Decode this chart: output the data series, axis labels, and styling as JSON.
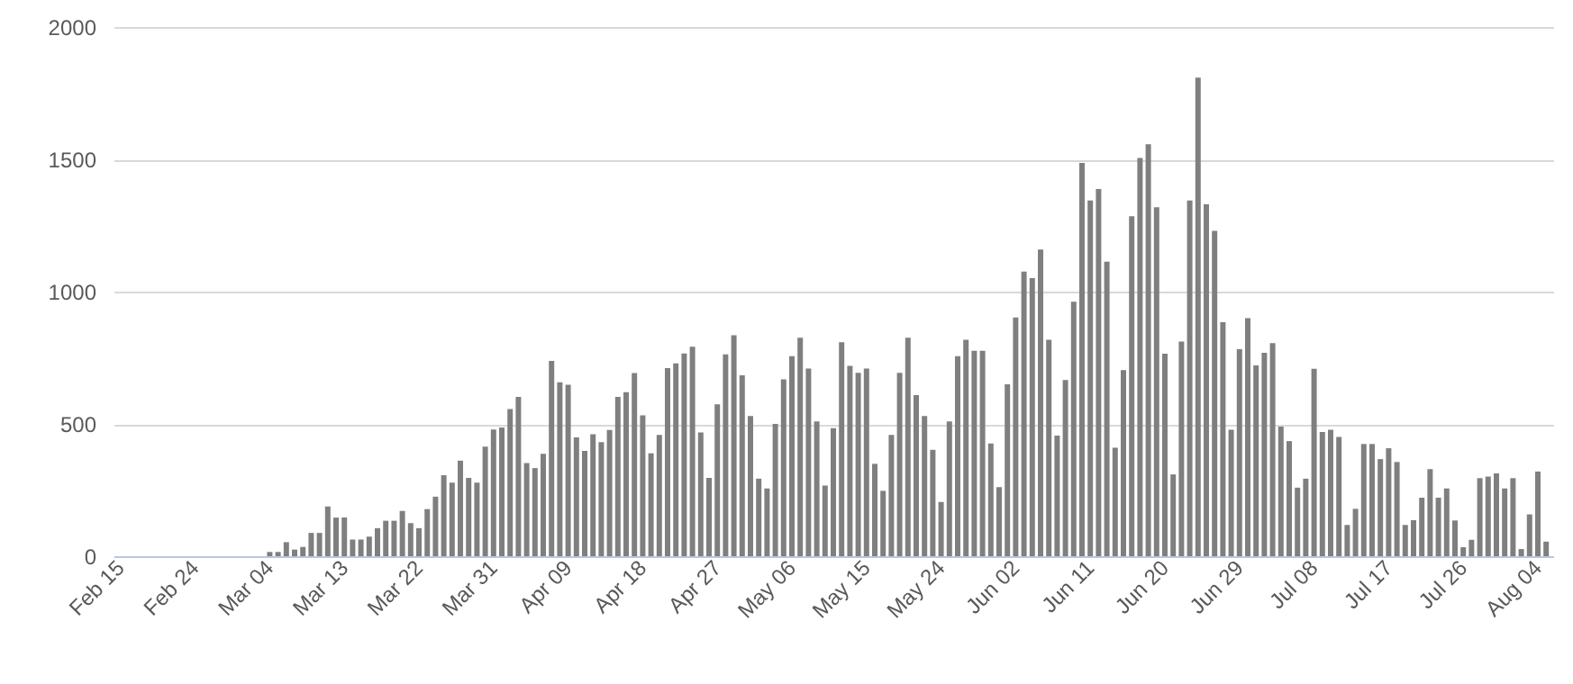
{
  "chart_data": {
    "type": "bar",
    "categories": [
      "Feb 15",
      null,
      null,
      null,
      null,
      null,
      null,
      null,
      null,
      "Feb 24",
      null,
      null,
      null,
      null,
      null,
      null,
      null,
      null,
      "Mar 04",
      null,
      null,
      null,
      null,
      null,
      null,
      null,
      null,
      "Mar 13",
      null,
      null,
      null,
      null,
      null,
      null,
      null,
      null,
      "Mar 22",
      null,
      null,
      null,
      null,
      null,
      null,
      null,
      null,
      "Mar 31",
      null,
      null,
      null,
      null,
      null,
      null,
      null,
      null,
      "Apr 09",
      null,
      null,
      null,
      null,
      null,
      null,
      null,
      null,
      "Apr 18",
      null,
      null,
      null,
      null,
      null,
      null,
      null,
      null,
      "Apr 27",
      null,
      null,
      null,
      null,
      null,
      null,
      null,
      null,
      "May 06",
      null,
      null,
      null,
      null,
      null,
      null,
      null,
      null,
      "May 15",
      null,
      null,
      null,
      null,
      null,
      null,
      null,
      null,
      "May 24",
      null,
      null,
      null,
      null,
      null,
      null,
      null,
      null,
      "Jun 02",
      null,
      null,
      null,
      null,
      null,
      null,
      null,
      null,
      "Jun 11",
      null,
      null,
      null,
      null,
      null,
      null,
      null,
      null,
      "Jun 20",
      null,
      null,
      null,
      null,
      null,
      null,
      null,
      null,
      "Jun 29",
      null,
      null,
      null,
      null,
      null,
      null,
      null,
      null,
      "Jul 08",
      null,
      null,
      null,
      null,
      null,
      null,
      null,
      null,
      "Jul 17",
      null,
      null,
      null,
      null,
      null,
      null,
      null,
      null,
      "Jul 26",
      null,
      null,
      null,
      null,
      null,
      null,
      null,
      null,
      "Aug 04",
      null
    ],
    "values": [
      0,
      0,
      0,
      0,
      0,
      0,
      0,
      0,
      0,
      0,
      0,
      0,
      0,
      0,
      0,
      0,
      0,
      0,
      16,
      16,
      53,
      25,
      35,
      88,
      88,
      188,
      146,
      146,
      63,
      63,
      74,
      106,
      134,
      134,
      171,
      125,
      106,
      178,
      225,
      306,
      278,
      361,
      296,
      278,
      414,
      479,
      486,
      556,
      602,
      352,
      333,
      387,
      738,
      657,
      648,
      449,
      398,
      461,
      431,
      477,
      602,
      620,
      692,
      532,
      389,
      458,
      711,
      729,
      766,
      792,
      468,
      296,
      574,
      763,
      835,
      684,
      530,
      293,
      256,
      500,
      668,
      756,
      826,
      709,
      509,
      267,
      484,
      809,
      719,
      693,
      709,
      349,
      247,
      458,
      693,
      826,
      609,
      530,
      402,
      205,
      509,
      756,
      818,
      776,
      776,
      426,
      261,
      650,
      902,
      1076,
      1051,
      1159,
      818,
      456,
      666,
      962,
      1486,
      1344,
      1388,
      1113,
      410,
      703,
      1285,
      1505,
      1557,
      1319,
      765,
      309,
      811,
      1344,
      1809,
      1330,
      1230,
      884,
      478,
      782,
      900,
      721,
      769,
      805,
      490,
      435,
      259,
      293,
      708,
      469,
      478,
      451,
      118,
      179,
      424,
      424,
      367,
      408,
      356,
      118,
      136,
      221,
      329,
      221,
      256,
      135,
      34,
      62,
      295,
      301,
      313,
      256,
      295,
      27,
      158,
      320,
      55
    ],
    "color": "#7f7f7f",
    "ylim": [
      0,
      2000
    ],
    "yticks": [
      0,
      500,
      {
        "value": 1000,
        "label": "1000"
      },
      {
        "value": 1500,
        "label": "1500"
      },
      {
        "value": 2000,
        "label": "2000"
      }
    ],
    "grid": "y"
  }
}
